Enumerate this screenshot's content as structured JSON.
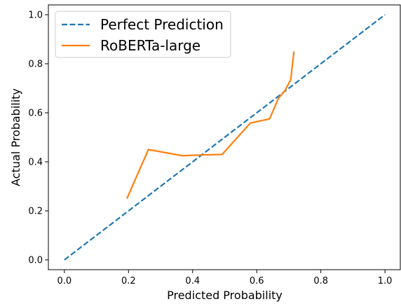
{
  "chart_data": {
    "type": "line",
    "title": "",
    "xlabel": "Predicted Probability",
    "ylabel": "Actual Probability",
    "xlim": [
      -0.05,
      1.05
    ],
    "ylim": [
      -0.04,
      1.04
    ],
    "xticks": [
      "0.0",
      "0.2",
      "0.4",
      "0.6",
      "0.8",
      "1.0"
    ],
    "yticks": [
      "0.0",
      "0.2",
      "0.4",
      "0.6",
      "0.8",
      "1.0"
    ],
    "grid": false,
    "legend_position": "top-left",
    "series": [
      {
        "name": "Perfect Prediction",
        "style": "dashed",
        "color": "#1f77b4",
        "x": [
          0.0,
          1.0
        ],
        "y": [
          0.0,
          1.0
        ]
      },
      {
        "name": "RoBERTa-large",
        "style": "solid",
        "color": "#ff7f0e",
        "x": [
          0.195,
          0.262,
          0.367,
          0.43,
          0.492,
          0.58,
          0.64,
          0.668,
          0.688,
          0.706,
          0.716
        ],
        "y": [
          0.25,
          0.45,
          0.425,
          0.428,
          0.43,
          0.558,
          0.575,
          0.66,
          0.69,
          0.735,
          0.85
        ]
      }
    ]
  }
}
